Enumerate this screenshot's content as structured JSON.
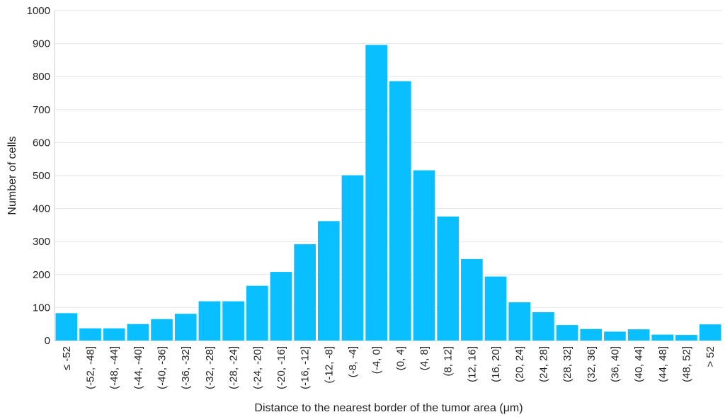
{
  "chart_data": {
    "type": "bar",
    "xlabel": "Distance to the nearest border of the tumor area (μm)",
    "ylabel": "Number of cells",
    "ylim": [
      0,
      1000
    ],
    "yticks": [
      0,
      100,
      200,
      300,
      400,
      500,
      600,
      700,
      800,
      900,
      1000
    ],
    "grid": "horizontal",
    "bar_color": "#0abfff",
    "categories": [
      "≤ -52",
      "(-52, -48]",
      "(-48, -44]",
      "(-44, -40]",
      "(-40, -36]",
      "(-36, -32]",
      "(-32, -28]",
      "(-28, -24]",
      "(-24, -20]",
      "(-20, -16]",
      "(-16, -12]",
      "(-12, -8]",
      "(-8, -4]",
      "(-4, 0]",
      "(0, 4]",
      "(4, 8]",
      "(8, 12]",
      "(12, 16]",
      "(16, 20]",
      "(20, 24]",
      "(24, 28]",
      "(28, 32]",
      "(32, 36]",
      "(36, 40]",
      "(40, 44]",
      "(44, 48]",
      "(48, 52]",
      "> 52"
    ],
    "values": [
      83,
      37,
      37,
      50,
      65,
      81,
      119,
      119,
      166,
      208,
      292,
      362,
      501,
      896,
      786,
      516,
      376,
      247,
      194,
      116,
      86,
      47,
      35,
      27,
      34,
      18,
      17,
      49
    ]
  }
}
